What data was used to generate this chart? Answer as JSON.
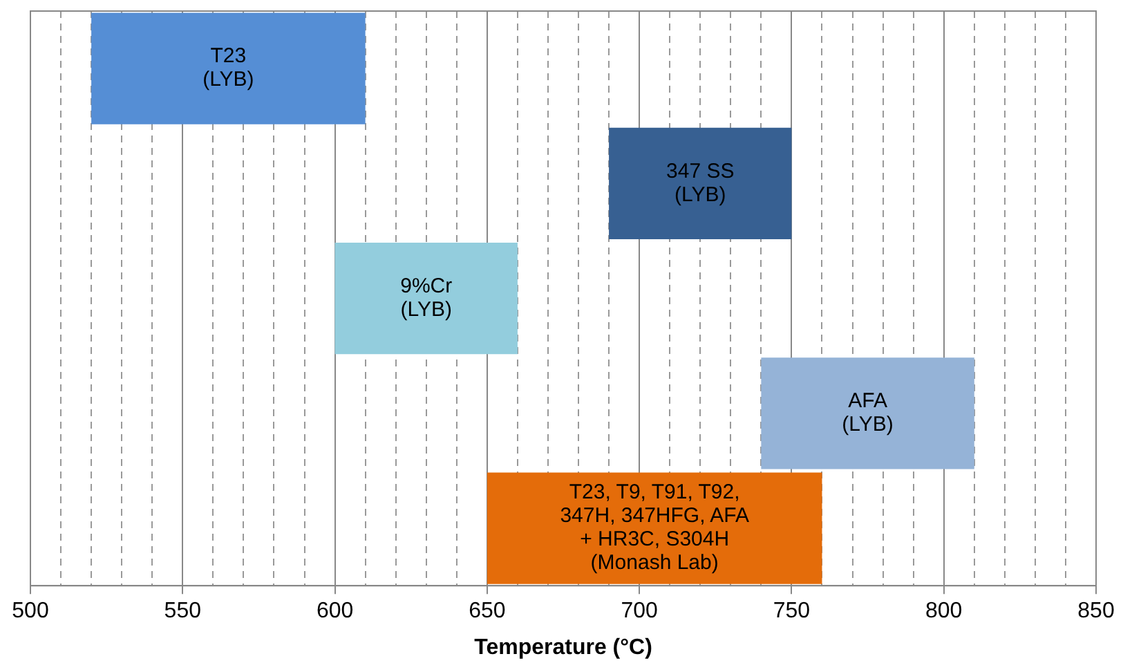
{
  "chart_data": {
    "type": "bar",
    "orientation": "horizontal",
    "xlabel": "Temperature (°C)",
    "categories": [
      "T23\n(LYB)",
      "347 SS\n(LYB)",
      "9%Cr\n(LYB)",
      "AFA\n(LYB)",
      "T23, T9, T91, T92,\n347H, 347HFG, AFA\n+ HR3C, S304H\n(Monash Lab)"
    ],
    "base": [
      520,
      690,
      600,
      740,
      650
    ],
    "values": [
      90,
      60,
      60,
      70,
      110
    ],
    "colors": [
      "#558ed5",
      "#376092",
      "#93cddd",
      "#95b3d7",
      "#e46c0a"
    ],
    "xlim": [
      500,
      850
    ],
    "xticks": [
      500,
      {
        "value": 510,
        "label": null
      },
      {
        "value": 520,
        "label": null
      },
      {
        "value": 530,
        "label": null
      },
      {
        "value": 540,
        "label": null
      },
      550,
      {
        "value": 560,
        "label": null
      },
      {
        "value": 570,
        "label": null
      },
      {
        "value": 580,
        "label": null
      },
      {
        "value": 590,
        "label": null
      },
      600,
      {
        "value": 610,
        "label": null
      },
      {
        "value": 620,
        "label": null
      },
      {
        "value": 630,
        "label": null
      },
      {
        "value": 640,
        "label": null
      },
      650,
      {
        "value": 660,
        "label": null
      },
      {
        "value": 670,
        "label": null
      },
      {
        "value": 680,
        "label": null
      },
      {
        "value": 690,
        "label": null
      },
      700,
      {
        "value": 710,
        "label": null
      },
      {
        "value": 720,
        "label": null
      },
      {
        "value": 730,
        "label": null
      },
      {
        "value": 740,
        "label": null
      },
      750,
      {
        "value": 760,
        "label": null
      },
      {
        "value": 770,
        "label": null
      },
      {
        "value": 780,
        "label": null
      },
      {
        "value": 790,
        "label": null
      },
      800,
      {
        "value": 810,
        "label": null
      },
      {
        "value": 820,
        "label": null
      },
      {
        "value": 830,
        "label": null
      },
      {
        "value": 840,
        "label": null
      },
      850
    ],
    "grid": "x",
    "tick_labels": "x"
  }
}
